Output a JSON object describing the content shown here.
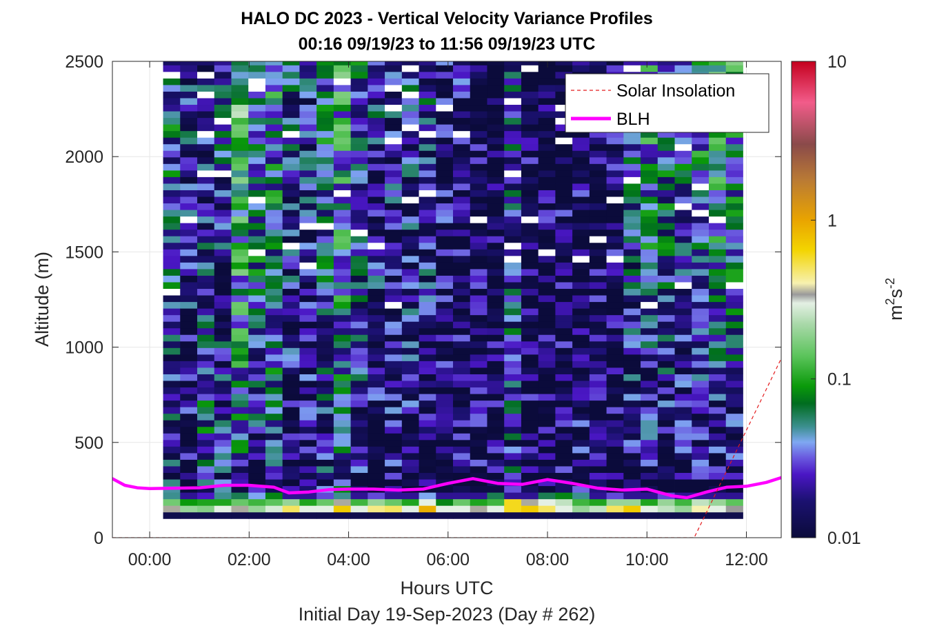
{
  "chart_data": {
    "type": "heatmap",
    "title": "HALO DC 2023 - Vertical Velocity Variance Profiles",
    "subtitle": "00:16 09/19/23 to 11:56 09/19/23  UTC",
    "xlabel": "Hours UTC",
    "ylabel": "Altitude (m)",
    "footer": "Initial Day 19-Sep-2023 (Day # 262)",
    "x_unit": "hours",
    "y_unit": "m",
    "xlim": [
      -0.75,
      12.7
    ],
    "ylim": [
      0,
      2500
    ],
    "x_ticks": [
      {
        "value": 0,
        "label": "00:00"
      },
      {
        "value": 2,
        "label": "02:00"
      },
      {
        "value": 4,
        "label": "04:00"
      },
      {
        "value": 6,
        "label": "06:00"
      },
      {
        "value": 8,
        "label": "08:00"
      },
      {
        "value": 10,
        "label": "10:00"
      },
      {
        "value": 12,
        "label": "12:00"
      }
    ],
    "y_ticks": [
      0,
      500,
      1000,
      1500,
      2000,
      2500
    ],
    "grid": true,
    "legend_position": "top-right",
    "legend": [
      {
        "name": "Solar Insolation",
        "style": "dashed",
        "color": "#e41a1c"
      },
      {
        "name": "BLH",
        "style": "solid",
        "color": "#ff00ff"
      }
    ],
    "colorbar": {
      "label_base": "m",
      "label_sup1": "2",
      "label_mid": "s",
      "label_sup2": "-2",
      "scale": "log",
      "range": [
        0.01,
        10
      ],
      "ticks": [
        {
          "value": 0.01,
          "label": "0.01"
        },
        {
          "value": 0.1,
          "label": "0.1"
        },
        {
          "value": 1,
          "label": "1"
        },
        {
          "value": 10,
          "label": "10"
        }
      ],
      "stops": [
        {
          "value": 0.01,
          "color": "#0b0b3b"
        },
        {
          "value": 0.017,
          "color": "#1b1170"
        },
        {
          "value": 0.025,
          "color": "#4a16c4"
        },
        {
          "value": 0.032,
          "color": "#6a5adf"
        },
        {
          "value": 0.04,
          "color": "#7fa8f2"
        },
        {
          "value": 0.05,
          "color": "#3c8f8f"
        },
        {
          "value": 0.07,
          "color": "#006d1f"
        },
        {
          "value": 0.09,
          "color": "#0a9a0a"
        },
        {
          "value": 0.14,
          "color": "#5cc45c"
        },
        {
          "value": 0.22,
          "color": "#a8d8a8"
        },
        {
          "value": 0.3,
          "color": "#e4f0e4"
        },
        {
          "value": 0.34,
          "color": "#9a9a9a"
        },
        {
          "value": 0.4,
          "color": "#f7f1b0"
        },
        {
          "value": 0.65,
          "color": "#f3d400"
        },
        {
          "value": 1.0,
          "color": "#e9a400"
        },
        {
          "value": 1.8,
          "color": "#b97a35"
        },
        {
          "value": 3.0,
          "color": "#8a4a4a"
        },
        {
          "value": 5.5,
          "color": "#f25c8a"
        },
        {
          "value": 10,
          "color": "#c4001e"
        }
      ]
    },
    "heatmap": {
      "time_start": 0.27,
      "time_end": 11.93,
      "altitude_bins_m": [
        100,
        2500
      ],
      "note_values": "log10 variance approximated per column profile",
      "column_profiles": [
        {
          "t": 0.35,
          "surface": [
            0.012,
            0.35,
            0.16,
            0.05
          ],
          "mid": 0.022,
          "upper": 0.04
        },
        {
          "t": 0.7,
          "surface": [
            0.012,
            0.2,
            0.09,
            0.02
          ],
          "mid": 0.012,
          "upper": 0.025
        },
        {
          "t": 1.05,
          "surface": [
            0.012,
            0.18,
            0.1,
            0.025
          ],
          "mid": 0.035,
          "upper": 0.02
        },
        {
          "t": 1.4,
          "surface": [
            0.012,
            0.3,
            0.1,
            0.05
          ],
          "mid": 0.02,
          "upper": 0.03
        },
        {
          "t": 1.75,
          "surface": [
            0.012,
            0.35,
            0.15,
            0.06
          ],
          "mid": 0.03,
          "upper": 0.1
        },
        {
          "t": 2.1,
          "surface": [
            0.012,
            0.2,
            0.12,
            0.04
          ],
          "mid": 0.022,
          "upper": 0.06
        },
        {
          "t": 2.45,
          "surface": [
            0.012,
            0.28,
            0.14,
            0.08
          ],
          "mid": 0.03,
          "upper": 0.05
        },
        {
          "t": 2.8,
          "surface": [
            0.012,
            0.5,
            0.2,
            0.02
          ],
          "mid": 0.012,
          "upper": 0.03
        },
        {
          "t": 3.15,
          "surface": [
            0.012,
            0.3,
            0.1,
            0.02
          ],
          "mid": 0.012,
          "upper": 0.025
        },
        {
          "t": 3.5,
          "surface": [
            0.012,
            0.3,
            0.15,
            0.03
          ],
          "mid": 0.02,
          "upper": 0.05
        },
        {
          "t": 3.85,
          "surface": [
            0.012,
            0.7,
            0.35,
            0.05
          ],
          "mid": 0.03,
          "upper": 0.07
        },
        {
          "t": 4.2,
          "surface": [
            0.012,
            0.3,
            0.12,
            0.02
          ],
          "mid": 0.018,
          "upper": 0.04
        },
        {
          "t": 4.55,
          "surface": [
            0.012,
            0.45,
            0.2,
            0.03
          ],
          "mid": 0.012,
          "upper": 0.03
        },
        {
          "t": 4.9,
          "surface": [
            0.012,
            0.5,
            0.15,
            0.02
          ],
          "mid": 0.014,
          "upper": 0.02
        },
        {
          "t": 5.25,
          "surface": [
            0.012,
            0.3,
            0.1,
            0.02
          ],
          "mid": 0.012,
          "upper": 0.03
        },
        {
          "t": 5.6,
          "surface": [
            0.012,
            0.9,
            0.3,
            0.04
          ],
          "mid": 0.012,
          "upper": 0.03
        },
        {
          "t": 5.95,
          "surface": [
            0.012,
            0.3,
            0.08,
            0.02
          ],
          "mid": 0.012,
          "upper": 0.015
        },
        {
          "t": 6.3,
          "surface": [
            0.012,
            0.3,
            0.15,
            0.02
          ],
          "mid": 0.012,
          "upper": 0.015
        },
        {
          "t": 6.65,
          "surface": [
            0.012,
            0.35,
            0.1,
            0.02
          ],
          "mid": 0.012,
          "upper": 0.012
        },
        {
          "t": 7.0,
          "surface": [
            0.012,
            0.3,
            0.12,
            0.06
          ],
          "mid": 0.012,
          "upper": 0.012
        },
        {
          "t": 7.35,
          "surface": [
            0.012,
            0.6,
            0.6,
            0.02
          ],
          "mid": 0.028,
          "upper": 0.03
        },
        {
          "t": 7.7,
          "surface": [
            0.012,
            0.7,
            0.35,
            0.02
          ],
          "mid": 0.012,
          "upper": 0.012
        },
        {
          "t": 8.05,
          "surface": [
            0.012,
            0.5,
            0.3,
            0.06
          ],
          "mid": 0.012,
          "upper": 0.012
        },
        {
          "t": 8.4,
          "surface": [
            0.012,
            0.3,
            0.25,
            0.08
          ],
          "mid": 0.012,
          "upper": 0.012
        },
        {
          "t": 8.75,
          "surface": [
            0.012,
            0.2,
            0.12,
            0.05
          ],
          "mid": 0.014,
          "upper": 0.012
        },
        {
          "t": 9.1,
          "surface": [
            0.012,
            0.25,
            0.1,
            0.02
          ],
          "mid": 0.012,
          "upper": 0.012
        },
        {
          "t": 9.45,
          "surface": [
            0.012,
            0.5,
            0.2,
            0.03
          ],
          "mid": 0.012,
          "upper": 0.012
        },
        {
          "t": 9.8,
          "surface": [
            0.012,
            0.7,
            0.2,
            0.02
          ],
          "mid": 0.012,
          "upper": 0.04
        },
        {
          "t": 10.15,
          "surface": [
            0.012,
            0.3,
            0.1,
            0.02
          ],
          "mid": 0.012,
          "upper": 0.06
        },
        {
          "t": 10.5,
          "surface": [
            0.012,
            0.25,
            0.2,
            0.03
          ],
          "mid": 0.012,
          "upper": 0.05
        },
        {
          "t": 10.85,
          "surface": [
            0.012,
            0.2,
            0.12,
            0.02
          ],
          "mid": 0.012,
          "upper": 0.04
        },
        {
          "t": 11.2,
          "surface": [
            0.012,
            0.4,
            0.25,
            0.02
          ],
          "mid": 0.012,
          "upper": 0.06
        },
        {
          "t": 11.55,
          "surface": [
            0.012,
            0.3,
            0.2,
            0.02
          ],
          "mid": 0.012,
          "upper": 0.08
        },
        {
          "t": 11.9,
          "surface": [
            0.012,
            0.34,
            0.14,
            0.02
          ],
          "mid": 0.012,
          "upper": 0.07
        }
      ]
    },
    "series": [
      {
        "name": "BLH",
        "x": [
          -0.75,
          -0.5,
          -0.25,
          0.0,
          0.55,
          1.0,
          1.5,
          2.0,
          2.5,
          2.8,
          3.2,
          3.6,
          4.0,
          4.5,
          5.0,
          5.5,
          6.0,
          6.5,
          7.0,
          7.5,
          8.0,
          8.5,
          9.0,
          9.5,
          10.0,
          10.5,
          10.8,
          11.2,
          11.6,
          12.0,
          12.4,
          12.7
        ],
        "y": [
          310,
          275,
          262,
          258,
          260,
          262,
          275,
          275,
          265,
          235,
          240,
          252,
          255,
          255,
          250,
          255,
          285,
          310,
          285,
          280,
          305,
          285,
          260,
          250,
          255,
          220,
          210,
          240,
          265,
          270,
          290,
          315
        ]
      },
      {
        "name": "Solar Insolation",
        "x": [
          -0.75,
          10.95,
          12.7
        ],
        "y": [
          0,
          0,
          940
        ]
      }
    ]
  }
}
